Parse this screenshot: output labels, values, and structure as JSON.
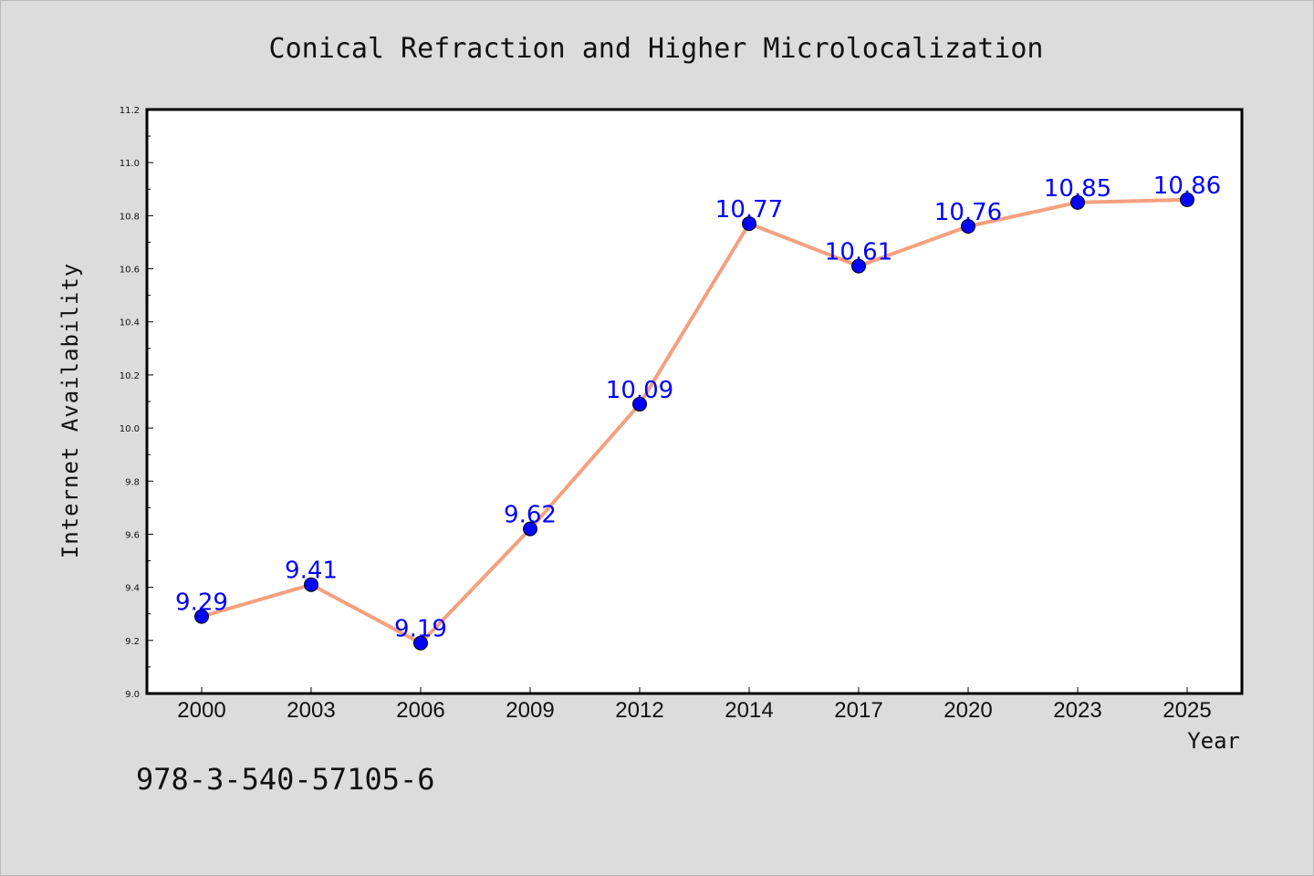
{
  "chart_data": {
    "type": "line",
    "title": "Conical Refraction and Higher Microlocalization",
    "xlabel": "Year",
    "ylabel": "Internet Availability",
    "categories": [
      "2000",
      "2003",
      "2006",
      "2009",
      "2012",
      "2014",
      "2017",
      "2020",
      "2023",
      "2025"
    ],
    "series": [
      {
        "values": [
          9.29,
          9.41,
          9.19,
          9.62,
          10.09,
          10.77,
          10.61,
          10.76,
          10.85,
          10.86
        ],
        "data_labels": [
          "9.29",
          "9.41",
          "9.19",
          "9.62",
          "10.09",
          "10.77",
          "10.61",
          "10.76",
          "10.85",
          "10.86"
        ],
        "line_color": "#f4a07e",
        "marker_color": "#0000ff"
      }
    ],
    "ylim": [
      9.0,
      11.2
    ],
    "yticks": [
      "9.0",
      "9.2",
      "9.4",
      "9.6",
      "9.8",
      "10.0",
      "10.2",
      "10.4",
      "10.6",
      "10.8",
      "11.0",
      "11.2"
    ],
    "grid": false,
    "legend": "none"
  },
  "footnote": "978-3-540-57105-6",
  "colors": {
    "background": "#dcdcdc",
    "plot_background": "#ffffff",
    "line": "#f4a07e",
    "marker": "#0000ff",
    "data_label": "#0000ff"
  }
}
